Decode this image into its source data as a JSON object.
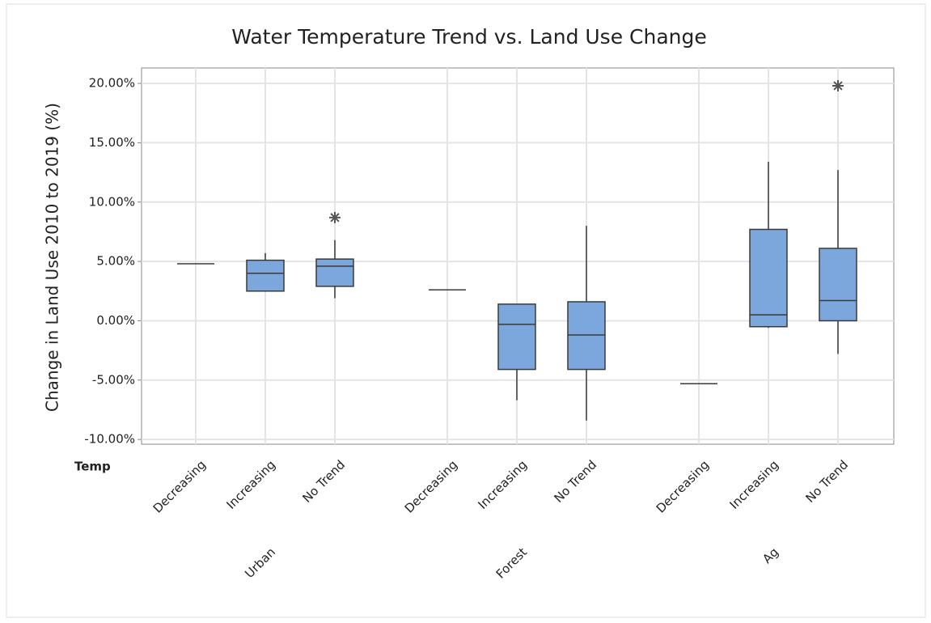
{
  "chart_data": {
    "type": "box",
    "title": "Water Temperature Trend vs. Land Use Change",
    "y_label": "Change in Land Use 2010 to 2019 (%)",
    "x_header": "Temp",
    "groups": [
      "Urban",
      "Forest",
      "Ag"
    ],
    "categories": [
      "Decreasing",
      "Increasing",
      "No Trend",
      "Decreasing",
      "Increasing",
      "No Trend",
      "Decreasing",
      "Increasing",
      "No Trend"
    ],
    "boxes": [
      {
        "min": 4.8,
        "q1": 4.8,
        "median": 4.8,
        "q3": 4.8,
        "max": 4.8,
        "outliers": []
      },
      {
        "min": 2.5,
        "q1": 2.5,
        "median": 4.0,
        "q3": 5.1,
        "max": 5.7,
        "outliers": []
      },
      {
        "min": 1.9,
        "q1": 2.9,
        "median": 4.6,
        "q3": 5.2,
        "max": 6.8,
        "outliers": [
          8.7
        ]
      },
      {
        "min": 2.6,
        "q1": 2.6,
        "median": 2.6,
        "q3": 2.6,
        "max": 2.6,
        "outliers": []
      },
      {
        "min": -6.7,
        "q1": -4.1,
        "median": -0.3,
        "q3": 1.4,
        "max": 1.4,
        "outliers": []
      },
      {
        "min": -8.4,
        "q1": -4.1,
        "median": -1.2,
        "q3": 1.6,
        "max": 8.0,
        "outliers": []
      },
      {
        "min": -5.3,
        "q1": -5.3,
        "median": -5.3,
        "q3": -5.3,
        "max": -5.3,
        "outliers": []
      },
      {
        "min": -0.6,
        "q1": -0.5,
        "median": 0.5,
        "q3": 7.7,
        "max": 13.4,
        "outliers": []
      },
      {
        "min": -2.8,
        "q1": 0.0,
        "median": 1.7,
        "q3": 6.1,
        "max": 12.7,
        "outliers": [
          19.8
        ]
      }
    ],
    "color": "#7ba7dc",
    "ylim": [
      -10.4,
      21.3
    ],
    "yticks": [
      {
        "value": -10,
        "label": "-10.00%"
      },
      {
        "value": -5,
        "label": "-5.00%"
      },
      {
        "value": 0,
        "label": "0.00%"
      },
      {
        "value": 5,
        "label": "5.00%"
      },
      {
        "value": 10,
        "label": "10.00%"
      },
      {
        "value": 15,
        "label": "15.00%"
      },
      {
        "value": 20,
        "label": "20.00%"
      }
    ],
    "grid": true
  }
}
